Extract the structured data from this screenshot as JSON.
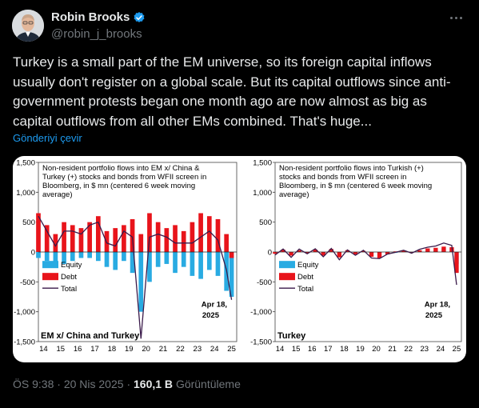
{
  "tweet": {
    "author_name": "Robin Brooks",
    "handle": "@robin_j_brooks",
    "text": "Turkey is a small part of the EM universe, so its foreign capital inflows usually don't register on a global scale. But its capital outflows since anti-government protests began one month ago are now almost as big as capital outflows from all other EMs combined. That's huge...",
    "translate_label": "Gönderiyi çevir",
    "time": "ÖS 9:38",
    "date": "20 Nis 2025",
    "views_count": "160,1 B",
    "views_label": "Görüntüleme",
    "separator": "·"
  },
  "icons": {
    "verified": "verified-badge-icon",
    "more": "more-options-icon"
  },
  "colors": {
    "accent": "#1d9bf0",
    "equity": "#29abe2",
    "debt": "#e8141b",
    "total": "#3a1a4a"
  },
  "chart_data": [
    {
      "type": "area",
      "title": "Non-resident portfolio flows into EM x/ China & Turkey (+) stocks and bonds from WFII screen in Bloomberg, in $ mn (centered 6 week moving average)",
      "panel_label": "EM x/ China and Turkey",
      "annotation": "Apr 18, 2025",
      "ylim": [
        -1500,
        1500
      ],
      "yticks": [
        1500,
        1000,
        500,
        0,
        -500,
        -1000,
        -1500
      ],
      "ytick_labels": [
        "1,500",
        "1,000",
        "500",
        "0",
        "-500",
        "-1,000",
        "-1,500"
      ],
      "xticks": [
        "14",
        "15",
        "16",
        "17",
        "18",
        "19",
        "20",
        "21",
        "22",
        "23",
        "24",
        "25"
      ],
      "legend": [
        "Equity",
        "Debt",
        "Total"
      ],
      "x": [
        14.0,
        14.5,
        15.0,
        15.5,
        16.0,
        16.5,
        17.0,
        17.5,
        18.0,
        18.5,
        19.0,
        19.5,
        20.0,
        20.5,
        21.0,
        21.5,
        22.0,
        22.5,
        23.0,
        23.5,
        24.0,
        24.5,
        25.0,
        25.3
      ],
      "series": [
        {
          "name": "Equity",
          "values": [
            -100,
            -150,
            -250,
            -200,
            -150,
            -100,
            -100,
            -150,
            -250,
            -300,
            -150,
            -350,
            -1000,
            -500,
            -250,
            -200,
            -350,
            -250,
            -400,
            -450,
            -300,
            -400,
            -650,
            -750
          ]
        },
        {
          "name": "Debt",
          "values": [
            650,
            450,
            300,
            500,
            450,
            400,
            500,
            600,
            350,
            400,
            450,
            550,
            300,
            650,
            500,
            400,
            450,
            350,
            500,
            650,
            600,
            550,
            300,
            -100
          ]
        },
        {
          "name": "Total",
          "values": [
            600,
            350,
            100,
            350,
            350,
            300,
            450,
            500,
            150,
            100,
            350,
            250,
            -1450,
            250,
            300,
            250,
            150,
            150,
            150,
            250,
            350,
            200,
            -300,
            -800
          ]
        }
      ]
    },
    {
      "type": "area",
      "title": "Non-resident portfolio flows into Turkish (+) stocks and bonds from WFII screen in Bloomberg, in $ mn (centered 6 week moving average)",
      "panel_label": "Turkey",
      "annotation": "Apr 18, 2025",
      "ylim": [
        -1500,
        1500
      ],
      "yticks": [
        1500,
        1000,
        500,
        0,
        -500,
        -1000,
        -1500
      ],
      "ytick_labels": [
        "1,500",
        "1,000",
        "500",
        "0",
        "-500",
        "-1,000",
        "-1,500"
      ],
      "xticks": [
        "14",
        "15",
        "16",
        "17",
        "18",
        "19",
        "20",
        "21",
        "22",
        "23",
        "24",
        "25"
      ],
      "legend": [
        "Equity",
        "Debt",
        "Total"
      ],
      "x": [
        14.0,
        14.5,
        15.0,
        15.5,
        16.0,
        16.5,
        17.0,
        17.5,
        18.0,
        18.5,
        19.0,
        19.5,
        20.0,
        20.5,
        21.0,
        21.5,
        22.0,
        22.5,
        23.0,
        23.5,
        24.0,
        24.5,
        25.0,
        25.3
      ],
      "series": [
        {
          "name": "Equity",
          "values": [
            -20,
            10,
            -30,
            20,
            -10,
            15,
            -20,
            10,
            -40,
            5,
            -15,
            10,
            -20,
            -10,
            5,
            -15,
            10,
            -10,
            15,
            20,
            30,
            60,
            30,
            -200
          ]
        },
        {
          "name": "Debt",
          "values": [
            -30,
            40,
            -60,
            30,
            -20,
            40,
            -60,
            50,
            -90,
            30,
            -40,
            20,
            -80,
            -100,
            -40,
            10,
            20,
            -10,
            30,
            60,
            70,
            90,
            80,
            -350
          ]
        },
        {
          "name": "Total",
          "values": [
            -50,
            50,
            -90,
            50,
            -30,
            55,
            -80,
            60,
            -130,
            35,
            -55,
            30,
            -100,
            -110,
            -35,
            -5,
            30,
            -20,
            45,
            80,
            100,
            150,
            110,
            -550
          ]
        }
      ]
    }
  ]
}
